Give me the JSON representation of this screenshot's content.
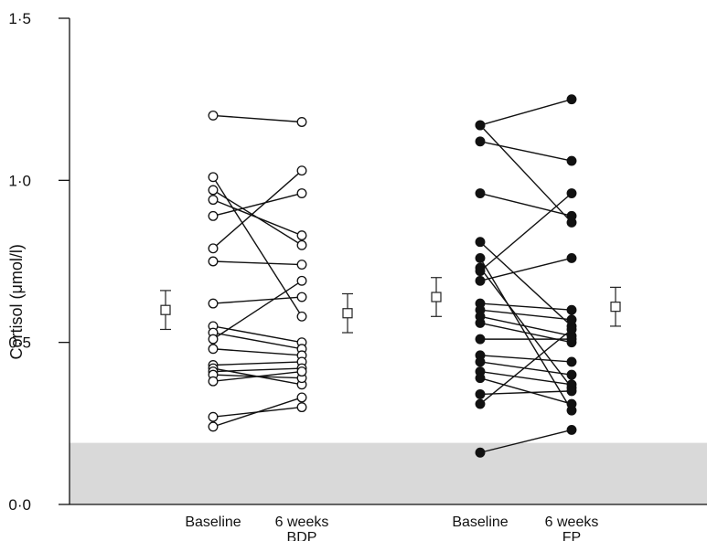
{
  "chart_data": {
    "type": "scatter",
    "ylabel": "Cortisol (μmol/l)",
    "ylim": [
      0,
      1.5
    ],
    "yticks": [
      {
        "value": 0.0,
        "label": "0·0"
      },
      {
        "value": 0.5,
        "label": "0·5"
      },
      {
        "value": 1.0,
        "label": "1·0"
      },
      {
        "value": 1.5,
        "label": "1·5"
      }
    ],
    "x_labels": [
      {
        "id": "bdp-base",
        "line1": "Baseline",
        "line2": ""
      },
      {
        "id": "bdp-6w",
        "line1": "6 weeks",
        "line2": "BDP"
      },
      {
        "id": "fp-base",
        "line1": "Baseline",
        "line2": ""
      },
      {
        "id": "fp-6w",
        "line1": "6 weeks",
        "line2": "FP"
      }
    ],
    "shaded_band": {
      "from": 0.0,
      "to": 0.19,
      "color": "#d9d9d9"
    },
    "groups": [
      {
        "name": "BDP",
        "marker": "open-circle",
        "pairs": [
          [
            1.2,
            1.18
          ],
          [
            1.01,
            0.58
          ],
          [
            0.97,
            0.8
          ],
          [
            0.94,
            0.83
          ],
          [
            0.89,
            0.96
          ],
          [
            0.79,
            1.03
          ],
          [
            0.75,
            0.74
          ],
          [
            0.62,
            0.64
          ],
          [
            0.55,
            0.5
          ],
          [
            0.53,
            0.48
          ],
          [
            0.51,
            0.69
          ],
          [
            0.48,
            0.46
          ],
          [
            0.43,
            0.44
          ],
          [
            0.42,
            0.37
          ],
          [
            0.41,
            0.42
          ],
          [
            0.4,
            0.39
          ],
          [
            0.38,
            0.41
          ],
          [
            0.27,
            0.3
          ],
          [
            0.24,
            0.33
          ]
        ],
        "summary": [
          {
            "position": "left",
            "mean": 0.6,
            "low": 0.54,
            "high": 0.66
          },
          {
            "position": "right",
            "mean": 0.59,
            "low": 0.53,
            "high": 0.65
          }
        ]
      },
      {
        "name": "FP",
        "marker": "filled-circle",
        "pairs": [
          [
            1.17,
            1.25
          ],
          [
            1.17,
            0.87
          ],
          [
            1.12,
            1.06
          ],
          [
            0.96,
            0.89
          ],
          [
            0.81,
            0.55
          ],
          [
            0.76,
            0.29
          ],
          [
            0.73,
            0.36
          ],
          [
            0.72,
            0.96
          ],
          [
            0.69,
            0.76
          ],
          [
            0.62,
            0.6
          ],
          [
            0.6,
            0.57
          ],
          [
            0.58,
            0.52
          ],
          [
            0.56,
            0.5
          ],
          [
            0.51,
            0.51
          ],
          [
            0.46,
            0.44
          ],
          [
            0.44,
            0.4
          ],
          [
            0.41,
            0.37
          ],
          [
            0.39,
            0.31
          ],
          [
            0.34,
            0.35
          ],
          [
            0.31,
            0.54
          ],
          [
            0.16,
            0.23
          ]
        ],
        "summary": [
          {
            "position": "left",
            "mean": 0.64,
            "low": 0.58,
            "high": 0.7
          },
          {
            "position": "right",
            "mean": 0.61,
            "low": 0.55,
            "high": 0.67
          }
        ]
      }
    ]
  }
}
